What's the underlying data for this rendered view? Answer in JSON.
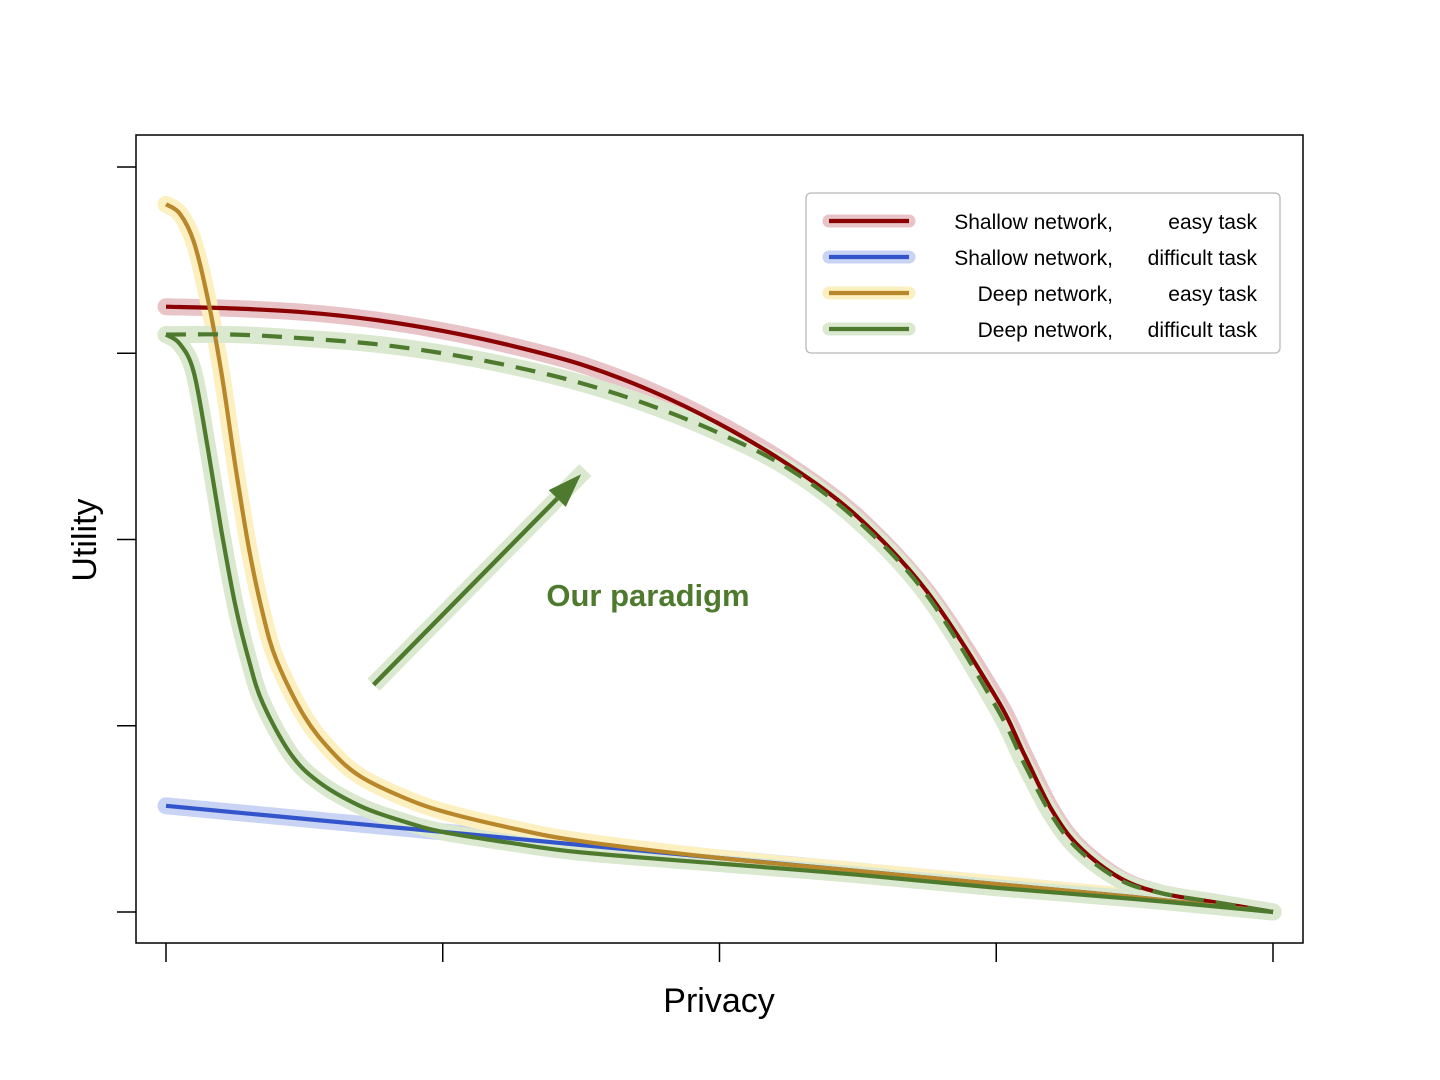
{
  "chart_data": {
    "type": "line",
    "xlabel": "Privacy",
    "ylabel": "Utility",
    "xlim": [
      0,
      4
    ],
    "ylim": [
      0,
      4
    ],
    "x_ticks": [
      0,
      1,
      2,
      3,
      4
    ],
    "y_ticks": [
      0,
      1,
      2,
      3,
      4
    ],
    "tick_labels_shown": false,
    "grid": false,
    "legend_position": "top-right",
    "series": [
      {
        "name": "Shallow network,",
        "task": "easy task",
        "color": "#8b0000",
        "halo_color": "#e8c4c8",
        "dashed": false,
        "points": [
          [
            0,
            3.25
          ],
          [
            0.25,
            3.24
          ],
          [
            0.5,
            3.22
          ],
          [
            0.75,
            3.18
          ],
          [
            1,
            3.12
          ],
          [
            1.25,
            3.04
          ],
          [
            1.5,
            2.94
          ],
          [
            1.75,
            2.8
          ],
          [
            2,
            2.62
          ],
          [
            2.25,
            2.4
          ],
          [
            2.5,
            2.12
          ],
          [
            2.75,
            1.72
          ],
          [
            3,
            1.15
          ],
          [
            3.1,
            0.85
          ],
          [
            3.2,
            0.55
          ],
          [
            3.3,
            0.35
          ],
          [
            3.45,
            0.18
          ],
          [
            3.6,
            0.1
          ],
          [
            3.8,
            0.05
          ],
          [
            4,
            0.0
          ]
        ]
      },
      {
        "name": "Shallow network,",
        "task": "difficult task",
        "color": "#3355cc",
        "halo_color": "#c9d3f4",
        "dashed": false,
        "points": [
          [
            0,
            0.57
          ],
          [
            0.5,
            0.5
          ],
          [
            1,
            0.43
          ],
          [
            1.5,
            0.36
          ],
          [
            2,
            0.29
          ],
          [
            2.5,
            0.22
          ],
          [
            3,
            0.15
          ],
          [
            3.5,
            0.08
          ],
          [
            4,
            0.0
          ]
        ]
      },
      {
        "name": "Deep network,",
        "task": "easy task",
        "color": "#b8862b",
        "halo_color": "#fcefc0",
        "dashed": false,
        "points": [
          [
            0,
            3.8
          ],
          [
            0.05,
            3.75
          ],
          [
            0.1,
            3.6
          ],
          [
            0.15,
            3.3
          ],
          [
            0.2,
            2.9
          ],
          [
            0.25,
            2.4
          ],
          [
            0.3,
            1.95
          ],
          [
            0.35,
            1.6
          ],
          [
            0.4,
            1.35
          ],
          [
            0.5,
            1.05
          ],
          [
            0.6,
            0.86
          ],
          [
            0.7,
            0.73
          ],
          [
            0.85,
            0.62
          ],
          [
            1,
            0.54
          ],
          [
            1.25,
            0.45
          ],
          [
            1.5,
            0.38
          ],
          [
            2,
            0.29
          ],
          [
            2.5,
            0.22
          ],
          [
            3,
            0.15
          ],
          [
            3.5,
            0.08
          ],
          [
            4,
            0.0
          ]
        ]
      },
      {
        "name": "Deep network,",
        "task": "difficult task",
        "color": "#4e7a2e",
        "halo_color": "#d9e8cf",
        "dashed": false,
        "points": [
          [
            0,
            3.1
          ],
          [
            0.05,
            3.05
          ],
          [
            0.1,
            2.9
          ],
          [
            0.15,
            2.5
          ],
          [
            0.2,
            2.05
          ],
          [
            0.25,
            1.65
          ],
          [
            0.3,
            1.35
          ],
          [
            0.35,
            1.12
          ],
          [
            0.45,
            0.85
          ],
          [
            0.55,
            0.7
          ],
          [
            0.7,
            0.57
          ],
          [
            0.85,
            0.49
          ],
          [
            1,
            0.43
          ],
          [
            1.25,
            0.37
          ],
          [
            1.5,
            0.32
          ],
          [
            2,
            0.26
          ],
          [
            2.5,
            0.2
          ],
          [
            3,
            0.13
          ],
          [
            3.5,
            0.07
          ],
          [
            4,
            0.0
          ]
        ]
      },
      {
        "name": "",
        "task": "",
        "color": "#4e7a2e",
        "halo_color": "#d9e8cf",
        "dashed": true,
        "points": [
          [
            0,
            3.1
          ],
          [
            0.25,
            3.1
          ],
          [
            0.5,
            3.08
          ],
          [
            0.75,
            3.05
          ],
          [
            1,
            3.0
          ],
          [
            1.25,
            2.93
          ],
          [
            1.5,
            2.84
          ],
          [
            1.75,
            2.72
          ],
          [
            2,
            2.57
          ],
          [
            2.25,
            2.38
          ],
          [
            2.5,
            2.1
          ],
          [
            2.75,
            1.7
          ],
          [
            3,
            1.1
          ],
          [
            3.1,
            0.8
          ],
          [
            3.2,
            0.52
          ],
          [
            3.3,
            0.33
          ],
          [
            3.45,
            0.17
          ],
          [
            3.6,
            0.1
          ],
          [
            3.8,
            0.05
          ],
          [
            4,
            0.0
          ]
        ]
      }
    ],
    "annotations": [
      {
        "text": "Our paradigm",
        "color": "#4e7a2e",
        "arrow_from": [
          0.75,
          1.22
        ],
        "arrow_to": [
          1.5,
          2.35
        ]
      }
    ]
  }
}
